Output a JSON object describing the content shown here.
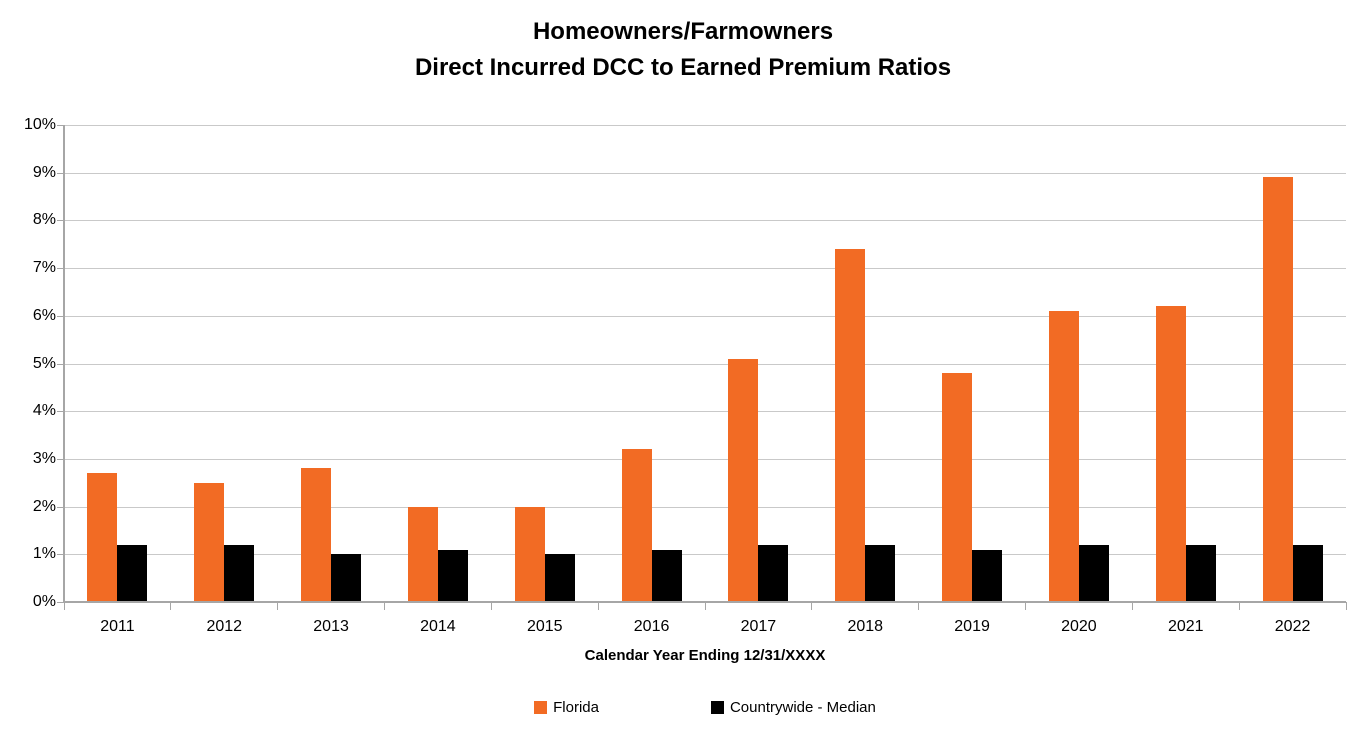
{
  "title": {
    "line1": "Homeowners/Farmowners",
    "line2": "Direct Incurred DCC to Earned Premium Ratios"
  },
  "chart_data": {
    "type": "bar",
    "title": "Homeowners/Farmowners Direct Incurred DCC to Earned Premium Ratios",
    "categories": [
      "2011",
      "2012",
      "2013",
      "2014",
      "2015",
      "2016",
      "2017",
      "2018",
      "2019",
      "2020",
      "2021",
      "2022"
    ],
    "series": [
      {
        "name": "Florida",
        "color": "#F26B24",
        "values": [
          2.7,
          2.5,
          2.8,
          2.0,
          2.0,
          3.2,
          5.1,
          7.4,
          4.8,
          6.1,
          6.2,
          8.9
        ]
      },
      {
        "name": "Countrywide - Median",
        "color": "#000000",
        "values": [
          1.2,
          1.2,
          1.0,
          1.1,
          1.0,
          1.1,
          1.2,
          1.2,
          1.1,
          1.2,
          1.2,
          1.2
        ]
      }
    ],
    "xlabel": "Calendar Year Ending 12/31/XXXX",
    "ylabel": "",
    "ylim": [
      0,
      10
    ],
    "ytick_step": 1,
    "yticks": [
      "0%",
      "1%",
      "2%",
      "3%",
      "4%",
      "5%",
      "6%",
      "7%",
      "8%",
      "9%",
      "10%"
    ],
    "grid": true,
    "legend_position": "bottom-center",
    "value_unit": "percent"
  }
}
